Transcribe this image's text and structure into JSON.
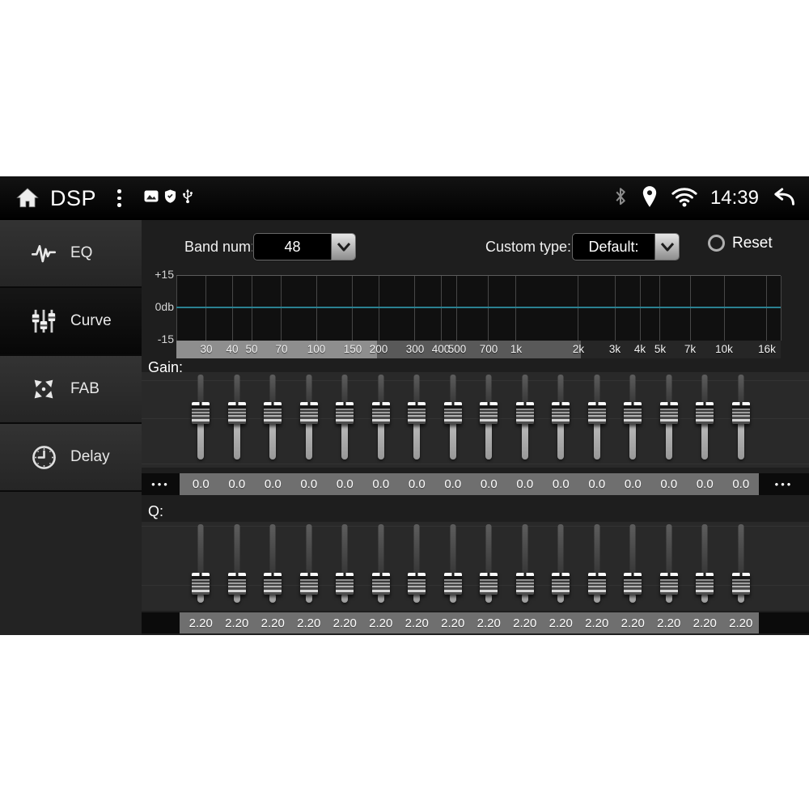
{
  "status_bar": {
    "title": "DSP",
    "time": "14:39",
    "left_icons": [
      "home-icon",
      "overflow-menu-icon",
      "image-icon",
      "shield-icon",
      "usb-icon"
    ],
    "right_icons": [
      "bluetooth-icon",
      "location-icon",
      "wifi-icon",
      "back-icon"
    ]
  },
  "sidebar": {
    "items": [
      {
        "label": "EQ",
        "icon": "waveform-icon",
        "selected": false
      },
      {
        "label": "Curve",
        "icon": "sliders-icon",
        "selected": true
      },
      {
        "label": "FAB",
        "icon": "crossfade-icon",
        "selected": false
      },
      {
        "label": "Delay",
        "icon": "clock-icon",
        "selected": false
      }
    ]
  },
  "controls": {
    "band_num": {
      "label": "Band num:",
      "value": "48"
    },
    "custom_type": {
      "label": "Custom type:",
      "value": "Default:"
    },
    "reset": {
      "label": "Reset"
    }
  },
  "eq_graph": {
    "y_axis_labels": [
      "+15",
      "0db",
      "-15"
    ],
    "freq_labels": [
      "30",
      "40",
      "50",
      "70",
      "100",
      "150",
      "200",
      "300",
      "400",
      "500",
      "700",
      "1k",
      "2k",
      "3k",
      "4k",
      "5k",
      "7k",
      "10k",
      "16k"
    ],
    "curve": {
      "type": "flat",
      "value_db": 0,
      "color": "#2a8191"
    }
  },
  "gain": {
    "label": "Gain:",
    "scroll_left": "•••",
    "scroll_right": "•••",
    "values": [
      "0.0",
      "0.0",
      "0.0",
      "0.0",
      "0.0",
      "0.0",
      "0.0",
      "0.0",
      "0.0",
      "0.0",
      "0.0",
      "0.0",
      "0.0",
      "0.0",
      "0.0",
      "0.0"
    ]
  },
  "q": {
    "label": "Q:",
    "values": [
      "2.20",
      "2.20",
      "2.20",
      "2.20",
      "2.20",
      "2.20",
      "2.20",
      "2.20",
      "2.20",
      "2.20",
      "2.20",
      "2.20",
      "2.20",
      "2.20",
      "2.20",
      "2.20"
    ]
  }
}
